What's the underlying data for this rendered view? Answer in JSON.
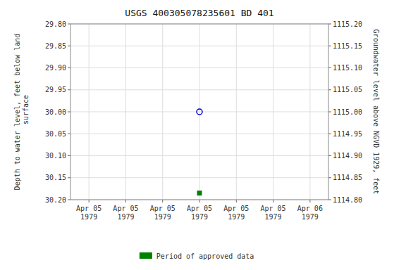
{
  "chart_data": {
    "type": "scatter",
    "title": "USGS 400305078235601 BD   401",
    "y_label": "Depth to water level, feet below land\n surface",
    "y2_label": "Groundwater level above NGVD 1929, feet",
    "categories": [
      "Apr 05\n1979",
      "Apr 05\n1979",
      "Apr 05\n1979",
      "Apr 05\n1979",
      "Apr 05\n1979",
      "Apr 05\n1979",
      "Apr 06\n1979"
    ],
    "series": [
      {
        "color": "#0000cc",
        "marker": "circle",
        "values": [
          null,
          null,
          null,
          30.0,
          null,
          null,
          null
        ]
      },
      {
        "name": "Period of approved data",
        "color": "#008000",
        "marker": "square",
        "values": [
          null,
          null,
          null,
          30.185,
          null,
          null,
          null
        ]
      }
    ],
    "ylim": [
      30.2,
      29.8
    ],
    "yticks": [
      {
        "value": 29.8,
        "label": "29.80"
      },
      {
        "value": 29.85,
        "label": "29.85"
      },
      {
        "value": 29.9,
        "label": "29.90"
      },
      {
        "value": 29.95,
        "label": "29.95"
      },
      {
        "value": 30.0,
        "label": "30.00"
      },
      {
        "value": 30.05,
        "label": "30.05"
      },
      {
        "value": 30.1,
        "label": "30.10"
      },
      {
        "value": 30.15,
        "label": "30.15"
      },
      {
        "value": 30.2,
        "label": "30.20"
      }
    ],
    "y2lim": [
      1114.8,
      1115.2
    ],
    "y2ticks": [
      {
        "value": 1115.2,
        "label": "1115.20"
      },
      {
        "value": 1115.15,
        "label": "1115.15"
      },
      {
        "value": 1115.1,
        "label": "1115.10"
      },
      {
        "value": 1115.05,
        "label": "1115.05"
      },
      {
        "value": 1115.0,
        "label": "1115.00"
      },
      {
        "value": 1114.95,
        "label": "1114.95"
      },
      {
        "value": 1114.9,
        "label": "1114.90"
      },
      {
        "value": 1114.85,
        "label": "1114.85"
      },
      {
        "value": 1114.8,
        "label": "1114.80"
      }
    ],
    "grid": true,
    "legend": "bottom"
  }
}
